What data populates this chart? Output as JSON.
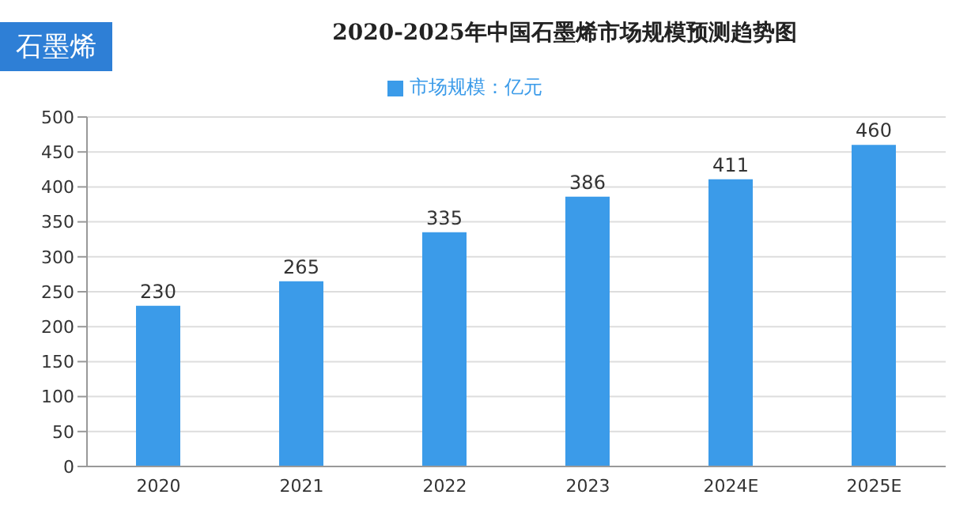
{
  "chart_data": {
    "type": "bar",
    "title": "2020-2025年中国石墨烯市场规模预测趋势图",
    "annotations": [
      "石墨烯"
    ],
    "categories": [
      "2020",
      "2021",
      "2022",
      "2023",
      "2024E",
      "2025E"
    ],
    "series": [
      {
        "name": "市场规模：亿元",
        "color": "#3b9be9",
        "values": [
          230,
          265,
          335,
          386,
          411,
          460
        ]
      }
    ],
    "ylim": [
      0,
      500
    ],
    "yticks": [
      0,
      50,
      100,
      150,
      200,
      250,
      300,
      350,
      400,
      450,
      500
    ],
    "grid": "y",
    "legend": "top",
    "data_labels": true
  }
}
